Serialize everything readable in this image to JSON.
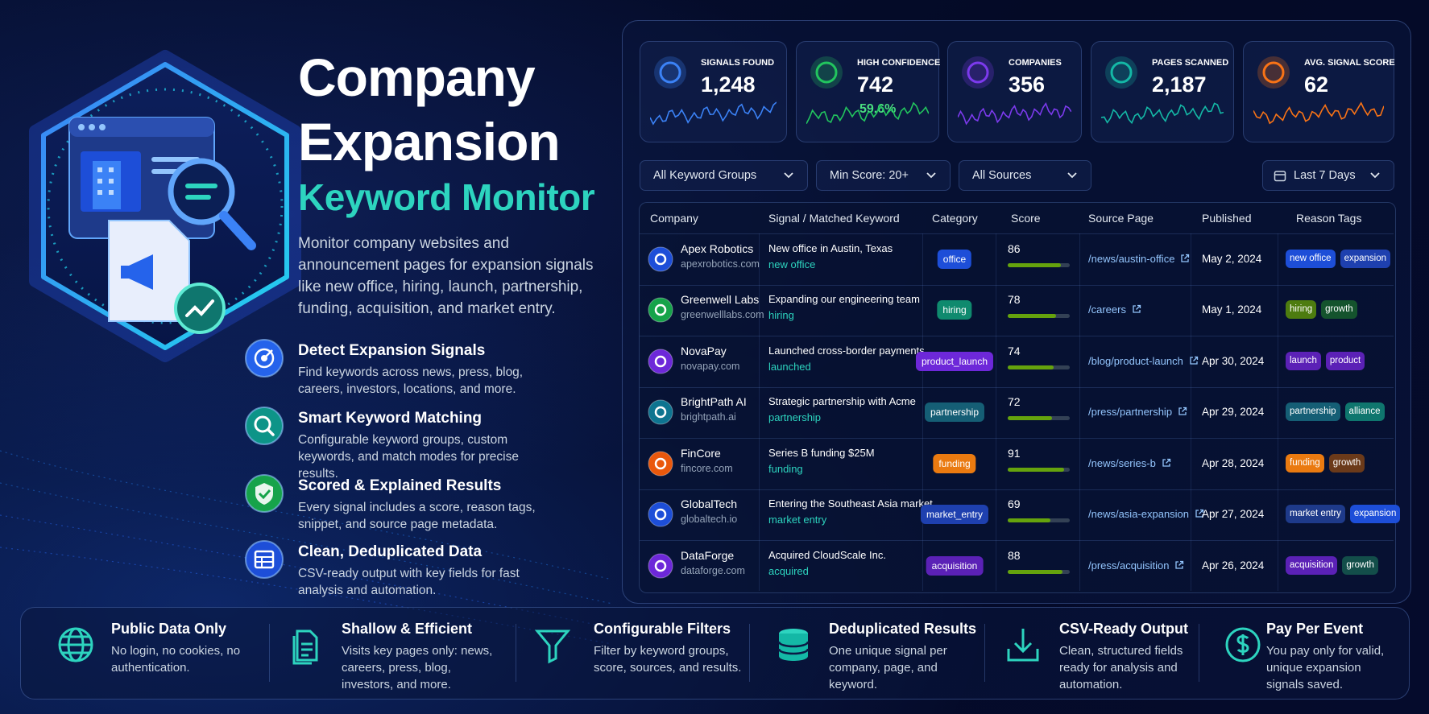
{
  "hero": {
    "title": [
      "Company",
      "Expansion",
      "Keyword Monitor"
    ],
    "description": "Monitor company websites and announcement pages for expansion signals like new office, hiring, launch, partnership, funding, acquisition, and market entry."
  },
  "features": [
    {
      "title": "Detect Expansion Signals",
      "text": "Find keywords across news, press, blog, careers, investors, locations, and more.",
      "color": "#2563eb"
    },
    {
      "title": "Smart Keyword Matching",
      "text": "Configurable keyword groups, custom keywords, and match modes for precise results.",
      "color": "#0d9488"
    },
    {
      "title": "Scored & Explained Results",
      "text": "Every signal includes a score, reason tags, snippet, and source page metadata.",
      "color": "#16a34a"
    },
    {
      "title": "Clean, Deduplicated Data",
      "text": "CSV-ready output with key fields for fast analysis and automation.",
      "color": "#1d4ed8"
    }
  ],
  "stats": [
    {
      "label": "SIGNALS FOUND",
      "value": "1,248",
      "color": "#3b82f6"
    },
    {
      "label": "HIGH CONFIDENCE",
      "value": "742",
      "sub": "59.6%",
      "color": "#22c55e"
    },
    {
      "label": "COMPANIES",
      "value": "356",
      "color": "#7c3aed"
    },
    {
      "label": "PAGES SCANNED",
      "value": "2,187",
      "color": "#14b8a6"
    },
    {
      "label": "AVG. SIGNAL SCORE",
      "value": "62",
      "color": "#f97316"
    }
  ],
  "filters": [
    "All Keyword Groups",
    "Min Score: 20+",
    "All Sources",
    "Last 7 Days"
  ],
  "table": {
    "headers": [
      "Company",
      "Signal / Matched Keyword",
      "Category",
      "Score",
      "Source Page",
      "Published",
      "Reason Tags"
    ],
    "rows": [
      {
        "company": "Apex Robotics",
        "domain": "apexrobotics.com",
        "icon_color": "#1d4ed8",
        "signal": "New office in Austin, Texas",
        "keyword": "new office",
        "category": "office",
        "category_color": "#1d4ed8",
        "score": 86,
        "source": "/news/austin-office",
        "published": "May 2, 2024",
        "tags": [
          {
            "text": "new office",
            "color": "#1d4ed8"
          },
          {
            "text": "expansion",
            "color": "#1e40af"
          }
        ]
      },
      {
        "company": "Greenwell Labs",
        "domain": "greenwelllabs.com",
        "icon_color": "#16a34a",
        "signal": "Expanding our engineering team",
        "keyword": "hiring",
        "category": "hiring",
        "category_color": "#0f8a6e",
        "score": 78,
        "source": "/careers",
        "published": "May 1, 2024",
        "tags": [
          {
            "text": "hiring",
            "color": "#4d7c0f"
          },
          {
            "text": "growth",
            "color": "#14532d"
          }
        ]
      },
      {
        "company": "NovaPay",
        "domain": "novapay.com",
        "icon_color": "#6d28d9",
        "signal": "Launched cross-border payments",
        "keyword": "launched",
        "category": "product_launch",
        "category_color": "#6d28d9",
        "score": 74,
        "source": "/blog/product-launch",
        "published": "Apr 30, 2024",
        "tags": [
          {
            "text": "launch",
            "color": "#5b21b6"
          },
          {
            "text": "product",
            "color": "#5b21b6"
          }
        ]
      },
      {
        "company": "BrightPath AI",
        "domain": "brightpath.ai",
        "icon_color": "#0e7490",
        "signal": "Strategic partnership with Acme",
        "keyword": "partnership",
        "category": "partnership",
        "category_color": "#155e75",
        "score": 72,
        "source": "/press/partnership",
        "published": "Apr 29, 2024",
        "tags": [
          {
            "text": "partnership",
            "color": "#155e75"
          },
          {
            "text": "alliance",
            "color": "#0f766e"
          }
        ]
      },
      {
        "company": "FinCore",
        "domain": "fincore.com",
        "icon_color": "#ea580c",
        "signal": "Series B funding $25M",
        "keyword": "funding",
        "category": "funding",
        "category_color": "#ea7a10",
        "score": 91,
        "source": "/news/series-b",
        "published": "Apr 28, 2024",
        "tags": [
          {
            "text": "funding",
            "color": "#ea7a10"
          },
          {
            "text": "growth",
            "color": "#6b3a1a"
          }
        ]
      },
      {
        "company": "GlobalTech",
        "domain": "globaltech.io",
        "icon_color": "#1d4ed8",
        "signal": "Entering the Southeast Asia market",
        "keyword": "market entry",
        "category": "market_entry",
        "category_color": "#1e40af",
        "score": 69,
        "source": "/news/asia-expansion",
        "published": "Apr 27, 2024",
        "tags": [
          {
            "text": "market entry",
            "color": "#1e3a8a"
          },
          {
            "text": "expansion",
            "color": "#1d4ed8"
          }
        ]
      },
      {
        "company": "DataForge",
        "domain": "dataforge.com",
        "icon_color": "#6d28d9",
        "signal": "Acquired CloudScale Inc.",
        "keyword": "acquired",
        "category": "acquisition",
        "category_color": "#5b21b6",
        "score": 88,
        "source": "/press/acquisition",
        "published": "Apr 26, 2024",
        "tags": [
          {
            "text": "acquisition",
            "color": "#5b21b6"
          },
          {
            "text": "growth",
            "color": "#134e4a"
          }
        ]
      }
    ]
  },
  "bottom": [
    {
      "title": "Public Data Only",
      "text": "No login, no cookies, no authentication."
    },
    {
      "title": "Shallow & Efficient",
      "text": "Visits key pages only: news, careers, press, blog, investors, and more."
    },
    {
      "title": "Configurable Filters",
      "text": "Filter by keyword groups, score, sources, and results."
    },
    {
      "title": "Deduplicated Results",
      "text": "One unique signal per company, page, and keyword."
    },
    {
      "title": "CSV-Ready Output",
      "text": "Clean, structured fields ready for analysis and automation."
    },
    {
      "title": "Pay Per Event",
      "text": "You pay only for valid, unique expansion signals saved."
    }
  ]
}
